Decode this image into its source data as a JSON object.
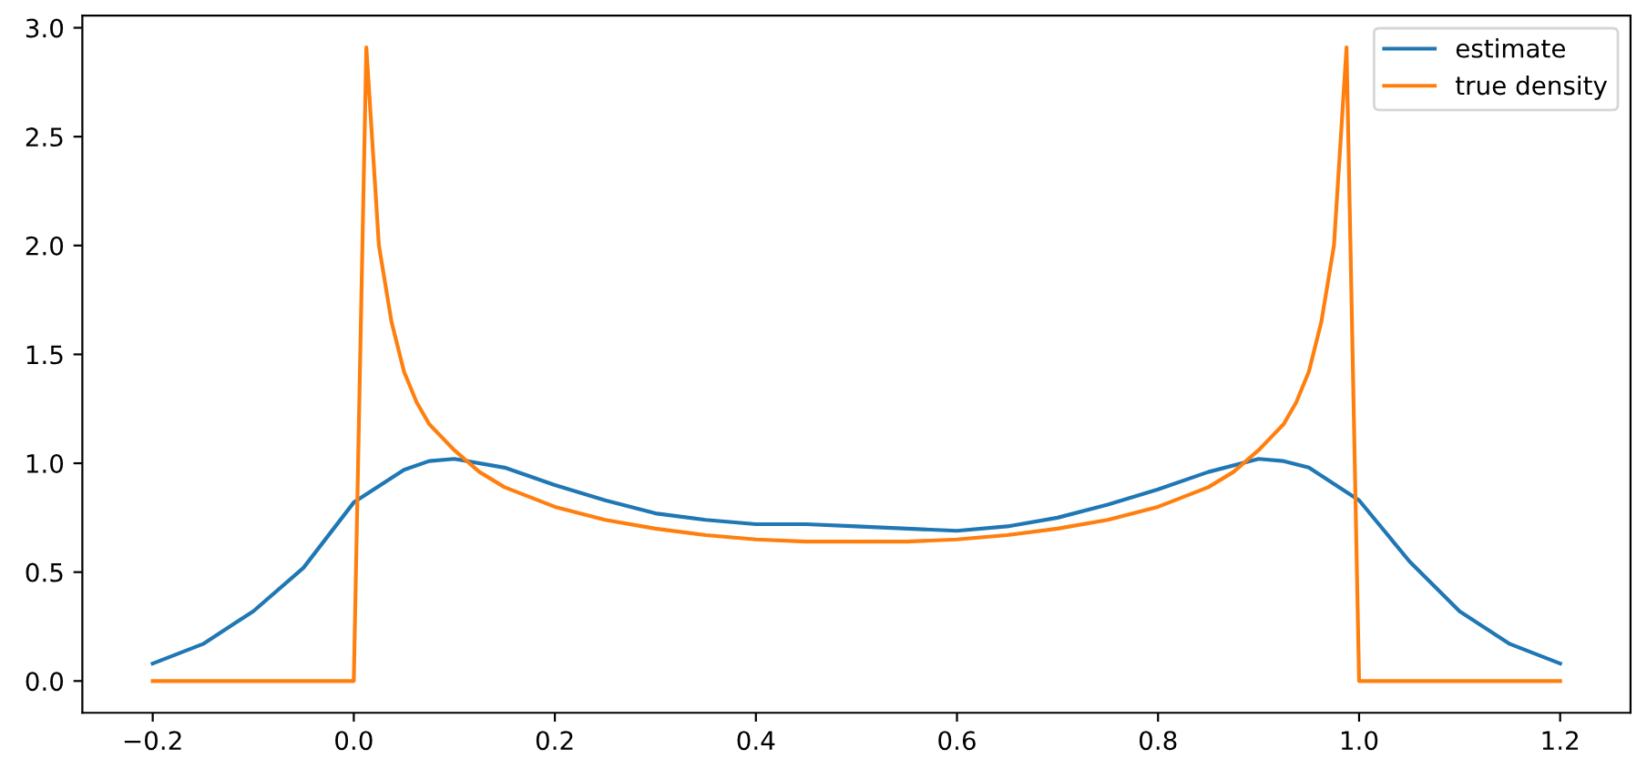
{
  "chart_data": {
    "type": "line",
    "series": [
      {
        "name": "estimate",
        "color": "#1f77b4",
        "x": [
          -0.2,
          -0.15,
          -0.1,
          -0.05,
          0,
          0.05,
          0.075,
          0.1,
          0.15,
          0.2,
          0.25,
          0.3,
          0.35,
          0.4,
          0.45,
          0.5,
          0.55,
          0.6,
          0.65,
          0.7,
          0.75,
          0.8,
          0.85,
          0.9,
          0.925,
          0.95,
          1.0,
          1.05,
          1.1,
          1.15,
          1.2
        ],
        "values": [
          0.08,
          0.17,
          0.32,
          0.52,
          0.82,
          0.97,
          1.01,
          1.02,
          0.98,
          0.9,
          0.83,
          0.77,
          0.74,
          0.72,
          0.72,
          0.71,
          0.7,
          0.69,
          0.71,
          0.75,
          0.81,
          0.88,
          0.96,
          1.02,
          1.01,
          0.98,
          0.83,
          0.55,
          0.32,
          0.17,
          0.08
        ]
      },
      {
        "name": "true density",
        "color": "#ff7f0e",
        "x": [
          -0.2,
          0,
          0.0125,
          0.025,
          0.0375,
          0.05,
          0.0625,
          0.075,
          0.0875,
          0.1,
          0.125,
          0.15,
          0.2,
          0.25,
          0.3,
          0.35,
          0.4,
          0.45,
          0.5,
          0.55,
          0.6,
          0.65,
          0.7,
          0.75,
          0.8,
          0.85,
          0.875,
          0.9,
          0.9125,
          0.925,
          0.9375,
          0.95,
          0.9625,
          0.975,
          0.9875,
          1.0,
          1.2
        ],
        "values": [
          0,
          0,
          2.91,
          2.0,
          1.65,
          1.42,
          1.28,
          1.18,
          1.12,
          1.06,
          0.96,
          0.89,
          0.8,
          0.74,
          0.7,
          0.67,
          0.65,
          0.64,
          0.64,
          0.64,
          0.65,
          0.67,
          0.7,
          0.74,
          0.8,
          0.89,
          0.96,
          1.06,
          1.12,
          1.18,
          1.28,
          1.42,
          1.65,
          2.0,
          2.91,
          0,
          0
        ]
      }
    ],
    "xlim": [
      -0.27,
      1.27
    ],
    "ylim": [
      -0.146,
      3.056
    ],
    "xticks": [
      {
        "value": -0.2,
        "label": "−0.2"
      },
      {
        "value": 0.0,
        "label": "0.0"
      },
      0.2,
      0.4,
      0.6,
      0.8,
      {
        "value": 1.0,
        "label": "1.0"
      },
      1.2
    ],
    "yticks": [
      {
        "value": 0.0,
        "label": "0.0"
      },
      0.5,
      {
        "value": 1.0,
        "label": "1.0"
      },
      1.5,
      {
        "value": 2.0,
        "label": "2.0"
      },
      2.5,
      {
        "value": 3.0,
        "label": "3.0"
      }
    ],
    "grid": false,
    "legend": "top right"
  }
}
